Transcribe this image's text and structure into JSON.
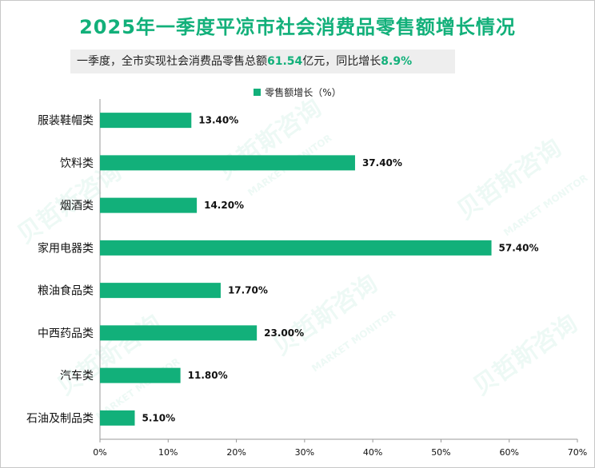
{
  "title": "2025年一季度平凉市社会消费品零售额增长情况",
  "summary": {
    "prefix": "一季度，全市实现社会消费品零售总额",
    "total": "61.54",
    "middle": "亿元，同比增长",
    "growth": "8.9%"
  },
  "watermark": {
    "cn": "贝哲斯咨询",
    "en": "MARKET MONITOR"
  },
  "colors": {
    "bar": "#12b07a",
    "axis": "#999999"
  },
  "chart_data": {
    "type": "bar",
    "orientation": "horizontal",
    "categories": [
      "服装鞋帽类",
      "饮料类",
      "烟酒类",
      "家用电器类",
      "粮油食品类",
      "中西药品类",
      "汽车类",
      "石油及制品类"
    ],
    "series": [
      {
        "name": "零售额增长（%）",
        "values": [
          13.4,
          37.4,
          14.2,
          57.4,
          17.7,
          23.0,
          11.8,
          5.1
        ]
      }
    ],
    "value_labels": [
      "13.40%",
      "37.40%",
      "14.20%",
      "57.40%",
      "17.70%",
      "23.00%",
      "11.80%",
      "5.10%"
    ],
    "xlim": [
      0,
      70
    ],
    "xticks": [
      0,
      10,
      20,
      30,
      40,
      50,
      60,
      70
    ],
    "xtick_labels": [
      "0%",
      "10%",
      "20%",
      "30%",
      "40%",
      "50%",
      "60%",
      "70%"
    ],
    "legend_position": "top",
    "grid": false
  }
}
